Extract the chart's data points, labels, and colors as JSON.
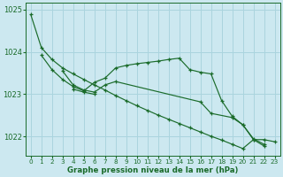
{
  "title": "Graphe pression niveau de la mer (hPa)",
  "background_color": "#cce8f0",
  "grid_color": "#aad4de",
  "line_color": "#1a6b2a",
  "xlim": [
    -0.5,
    23.5
  ],
  "ylim": [
    1021.55,
    1025.15
  ],
  "yticks": [
    1022,
    1023,
    1024,
    1025
  ],
  "xticks": [
    0,
    1,
    2,
    3,
    4,
    5,
    6,
    7,
    8,
    9,
    10,
    11,
    12,
    13,
    14,
    15,
    16,
    17,
    18,
    19,
    20,
    21,
    22,
    23
  ],
  "line1_x": [
    0,
    1,
    2,
    3,
    4,
    5,
    6,
    7,
    8,
    9,
    10,
    11,
    12,
    13,
    14,
    15,
    16,
    17,
    18,
    19,
    20,
    21,
    22,
    23
  ],
  "line1_y": [
    1024.88,
    1024.1,
    1023.82,
    1023.62,
    1023.48,
    1023.35,
    1023.22,
    1023.1,
    1022.97,
    1022.85,
    1022.73,
    1022.62,
    1022.51,
    1022.41,
    1022.31,
    1022.21,
    1022.11,
    1022.01,
    1021.92,
    1021.82,
    1021.72,
    1021.93,
    1021.93,
    1021.88
  ],
  "line2_x": [
    1,
    2,
    3,
    4,
    5,
    6,
    7,
    8,
    9,
    10,
    11,
    12,
    13,
    14,
    15,
    16,
    17,
    18,
    19,
    20,
    21,
    22
  ],
  "line2_y": [
    1023.92,
    1023.58,
    1023.35,
    1023.18,
    1023.08,
    1023.28,
    1023.38,
    1023.62,
    1023.68,
    1023.72,
    1023.75,
    1023.78,
    1023.82,
    1023.85,
    1023.58,
    1023.52,
    1023.48,
    1022.85,
    1022.48,
    1022.28,
    1021.95,
    1021.82
  ],
  "line3_x": [
    3,
    4,
    5,
    6,
    7,
    8,
    16,
    17,
    19,
    20,
    21,
    22
  ],
  "line3_y": [
    1023.55,
    1023.22,
    1023.1,
    1023.05,
    1023.22,
    1023.3,
    1022.82,
    1022.55,
    1022.45,
    1022.28,
    1021.93,
    1021.78
  ],
  "line4_x": [
    4,
    5,
    6
  ],
  "line4_y": [
    1023.12,
    1023.05,
    1023.0
  ]
}
